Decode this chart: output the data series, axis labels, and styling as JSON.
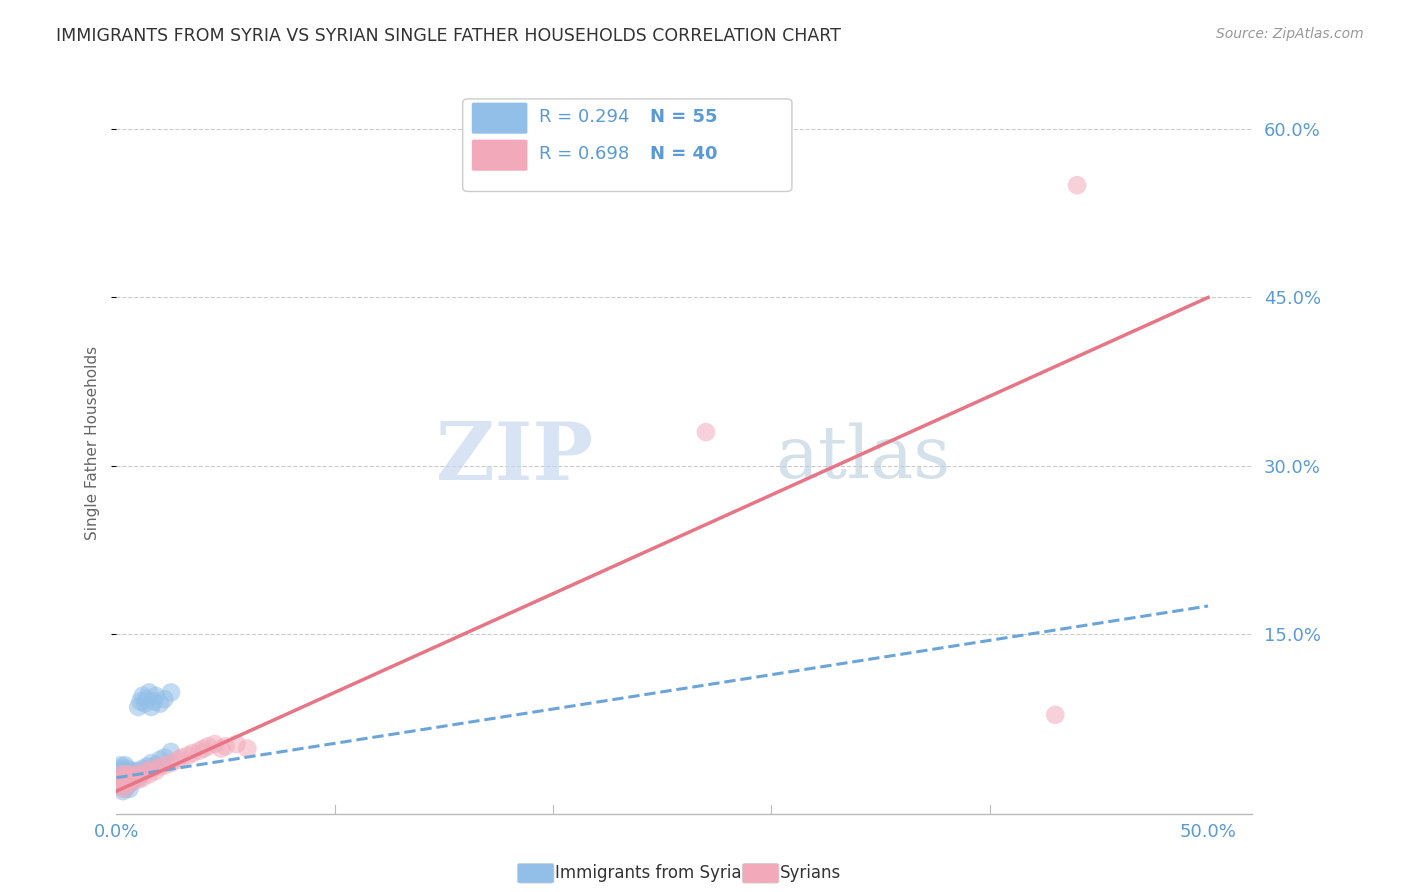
{
  "title": "IMMIGRANTS FROM SYRIA VS SYRIAN SINGLE FATHER HOUSEHOLDS CORRELATION CHART",
  "source": "Source: ZipAtlas.com",
  "ylabel": "Single Father Households",
  "legend_label1": "Immigrants from Syria",
  "legend_label2": "Syrians",
  "legend_r1": "R = 0.294",
  "legend_n1": "N = 55",
  "legend_r2": "R = 0.698",
  "legend_n2": "N = 40",
  "xlim": [
    0.0,
    0.52
  ],
  "ylim": [
    -0.01,
    0.65
  ],
  "yticks": [
    0.15,
    0.3,
    0.45,
    0.6
  ],
  "xtick_minor": [
    0.1,
    0.2,
    0.3,
    0.4
  ],
  "blue_color": "#92BFE8",
  "pink_color": "#F2AABB",
  "blue_line_color": "#6BA5D8",
  "pink_line_color": "#E87585",
  "watermark_zip": "ZIP",
  "watermark_atlas": "atlas",
  "blue_scatter_x": [
    0.001,
    0.001,
    0.001,
    0.002,
    0.002,
    0.002,
    0.002,
    0.003,
    0.003,
    0.003,
    0.003,
    0.004,
    0.004,
    0.004,
    0.004,
    0.005,
    0.005,
    0.005,
    0.006,
    0.006,
    0.006,
    0.007,
    0.007,
    0.008,
    0.008,
    0.009,
    0.01,
    0.01,
    0.011,
    0.012,
    0.013,
    0.014,
    0.015,
    0.016,
    0.018,
    0.02,
    0.022,
    0.025,
    0.01,
    0.011,
    0.012,
    0.013,
    0.014,
    0.015,
    0.016,
    0.017,
    0.018,
    0.02,
    0.022,
    0.025,
    0.003,
    0.004,
    0.005,
    0.006,
    0.007
  ],
  "blue_scatter_y": [
    0.02,
    0.025,
    0.03,
    0.018,
    0.022,
    0.028,
    0.033,
    0.015,
    0.02,
    0.025,
    0.03,
    0.018,
    0.022,
    0.028,
    0.033,
    0.02,
    0.025,
    0.03,
    0.018,
    0.022,
    0.028,
    0.02,
    0.025,
    0.022,
    0.028,
    0.025,
    0.022,
    0.028,
    0.025,
    0.03,
    0.028,
    0.032,
    0.03,
    0.035,
    0.033,
    0.038,
    0.04,
    0.045,
    0.085,
    0.09,
    0.095,
    0.088,
    0.092,
    0.098,
    0.085,
    0.09,
    0.095,
    0.088,
    0.092,
    0.098,
    0.01,
    0.012,
    0.015,
    0.012,
    0.018
  ],
  "pink_scatter_x": [
    0.001,
    0.001,
    0.002,
    0.002,
    0.003,
    0.003,
    0.004,
    0.004,
    0.005,
    0.005,
    0.006,
    0.006,
    0.007,
    0.008,
    0.009,
    0.01,
    0.011,
    0.012,
    0.013,
    0.015,
    0.016,
    0.018,
    0.02,
    0.022,
    0.025,
    0.028,
    0.03,
    0.033,
    0.035,
    0.038,
    0.04,
    0.042,
    0.045,
    0.048,
    0.05,
    0.055,
    0.06,
    0.27,
    0.43,
    0.44
  ],
  "pink_scatter_y": [
    0.015,
    0.022,
    0.018,
    0.025,
    0.012,
    0.02,
    0.018,
    0.025,
    0.015,
    0.022,
    0.018,
    0.025,
    0.02,
    0.022,
    0.025,
    0.02,
    0.025,
    0.022,
    0.028,
    0.025,
    0.03,
    0.028,
    0.032,
    0.033,
    0.035,
    0.038,
    0.04,
    0.042,
    0.044,
    0.046,
    0.048,
    0.05,
    0.052,
    0.048,
    0.05,
    0.052,
    0.048,
    0.33,
    0.078,
    0.55
  ],
  "blue_trend_x": [
    0.0,
    0.5
  ],
  "blue_trend_y": [
    0.022,
    0.175
  ],
  "pink_trend_x": [
    0.0,
    0.5
  ],
  "pink_trend_y": [
    0.01,
    0.45
  ],
  "background_color": "#FFFFFF",
  "grid_color": "#CCCCCC",
  "title_color": "#333333",
  "tick_color_blue": "#5B9BD5",
  "marker_size": 180,
  "marker_alpha": 0.55
}
